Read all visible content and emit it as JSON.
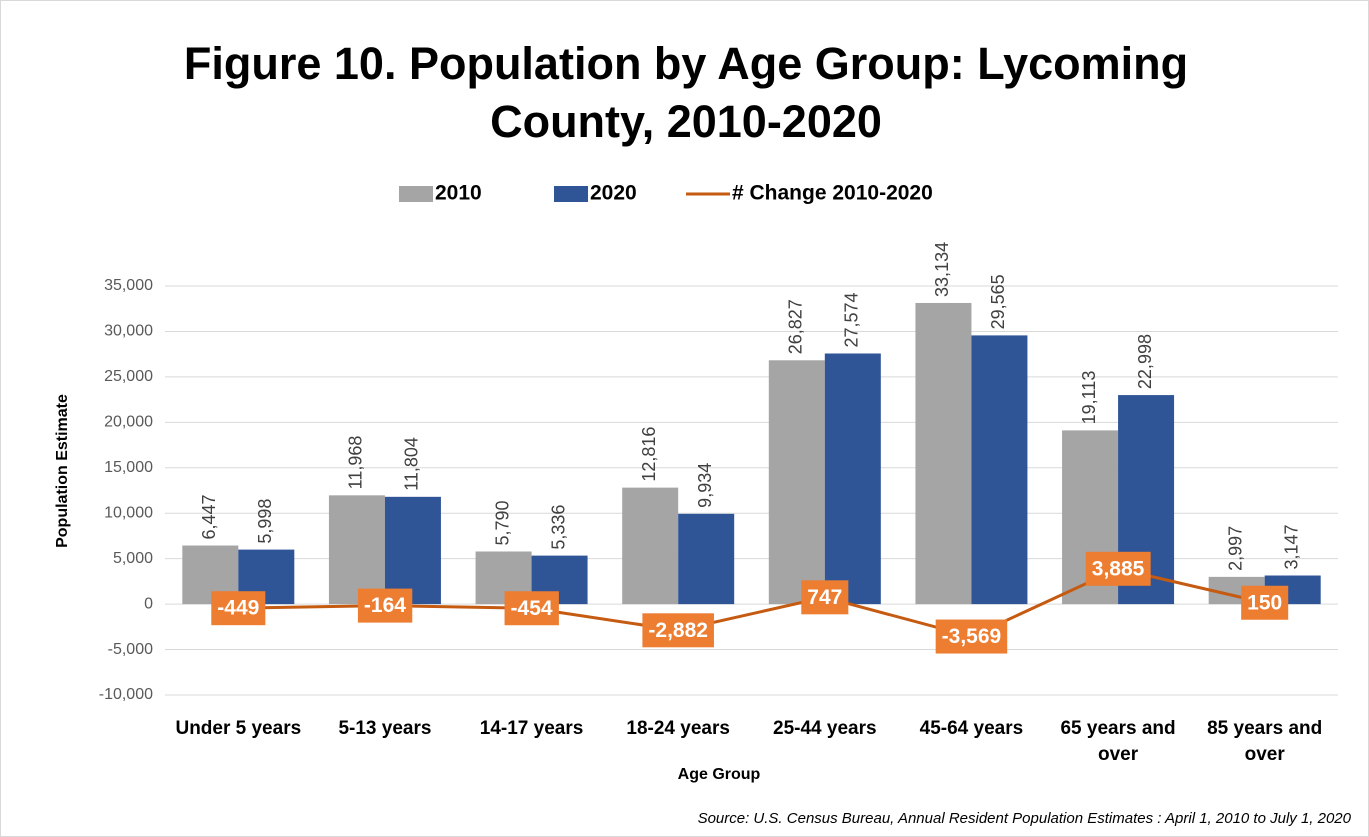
{
  "chart_data": {
    "type": "bar",
    "title": "Figure 10. Population by Age Group: Lycoming County, 2010-2020",
    "x_label": "Age Group",
    "y_label": "Population Estimate",
    "source": "Source: U.S. Census Bureau, Annual Resident Population Estimates : April 1, 2010 to July 1, 2020",
    "categories": [
      "Under 5 years",
      "5-13 years",
      "14-17 years",
      "18-24 years",
      "25-44 years",
      "45-64 years",
      "65 years and over",
      "85 years and over"
    ],
    "series": [
      {
        "name": "2010",
        "type": "bar",
        "color": "#a5a5a5",
        "values": [
          6447,
          11968,
          5790,
          12816,
          26827,
          33134,
          19113,
          2997
        ],
        "value_labels": [
          "6,447",
          "11,968",
          "5,790",
          "12,816",
          "26,827",
          "33,134",
          "19,113",
          "2,997"
        ]
      },
      {
        "name": "2020",
        "type": "bar",
        "color": "#2f5597",
        "values": [
          5998,
          11804,
          5336,
          9934,
          27574,
          29565,
          22998,
          3147
        ],
        "value_labels": [
          "5,998",
          "11,804",
          "5,336",
          "9,934",
          "27,574",
          "29,565",
          "22,998",
          "3,147"
        ]
      },
      {
        "name": "# Change 2010-2020",
        "type": "line",
        "color": "#c55a11",
        "label_color": "#ed7d31",
        "values": [
          -449,
          -164,
          -454,
          -2882,
          747,
          -3569,
          3885,
          150
        ],
        "value_labels": [
          "-449",
          "-164",
          "-454",
          "-2,882",
          "747",
          "-3,569",
          "3,885",
          "150"
        ]
      }
    ],
    "ylim": [
      -10000,
      35000
    ],
    "yticks": [
      {
        "value": -10000,
        "label": "-10,000"
      },
      {
        "value": -5000,
        "label": "-5,000"
      },
      0,
      {
        "value": 5000,
        "label": "5,000"
      },
      {
        "value": 10000,
        "label": "10,000"
      },
      {
        "value": 15000,
        "label": "15,000"
      },
      {
        "value": 20000,
        "label": "20,000"
      },
      {
        "value": 25000,
        "label": "25,000"
      },
      {
        "value": 30000,
        "label": "30,000"
      },
      {
        "value": 35000,
        "label": "35,000"
      }
    ],
    "grid": true,
    "legend": "top"
  }
}
